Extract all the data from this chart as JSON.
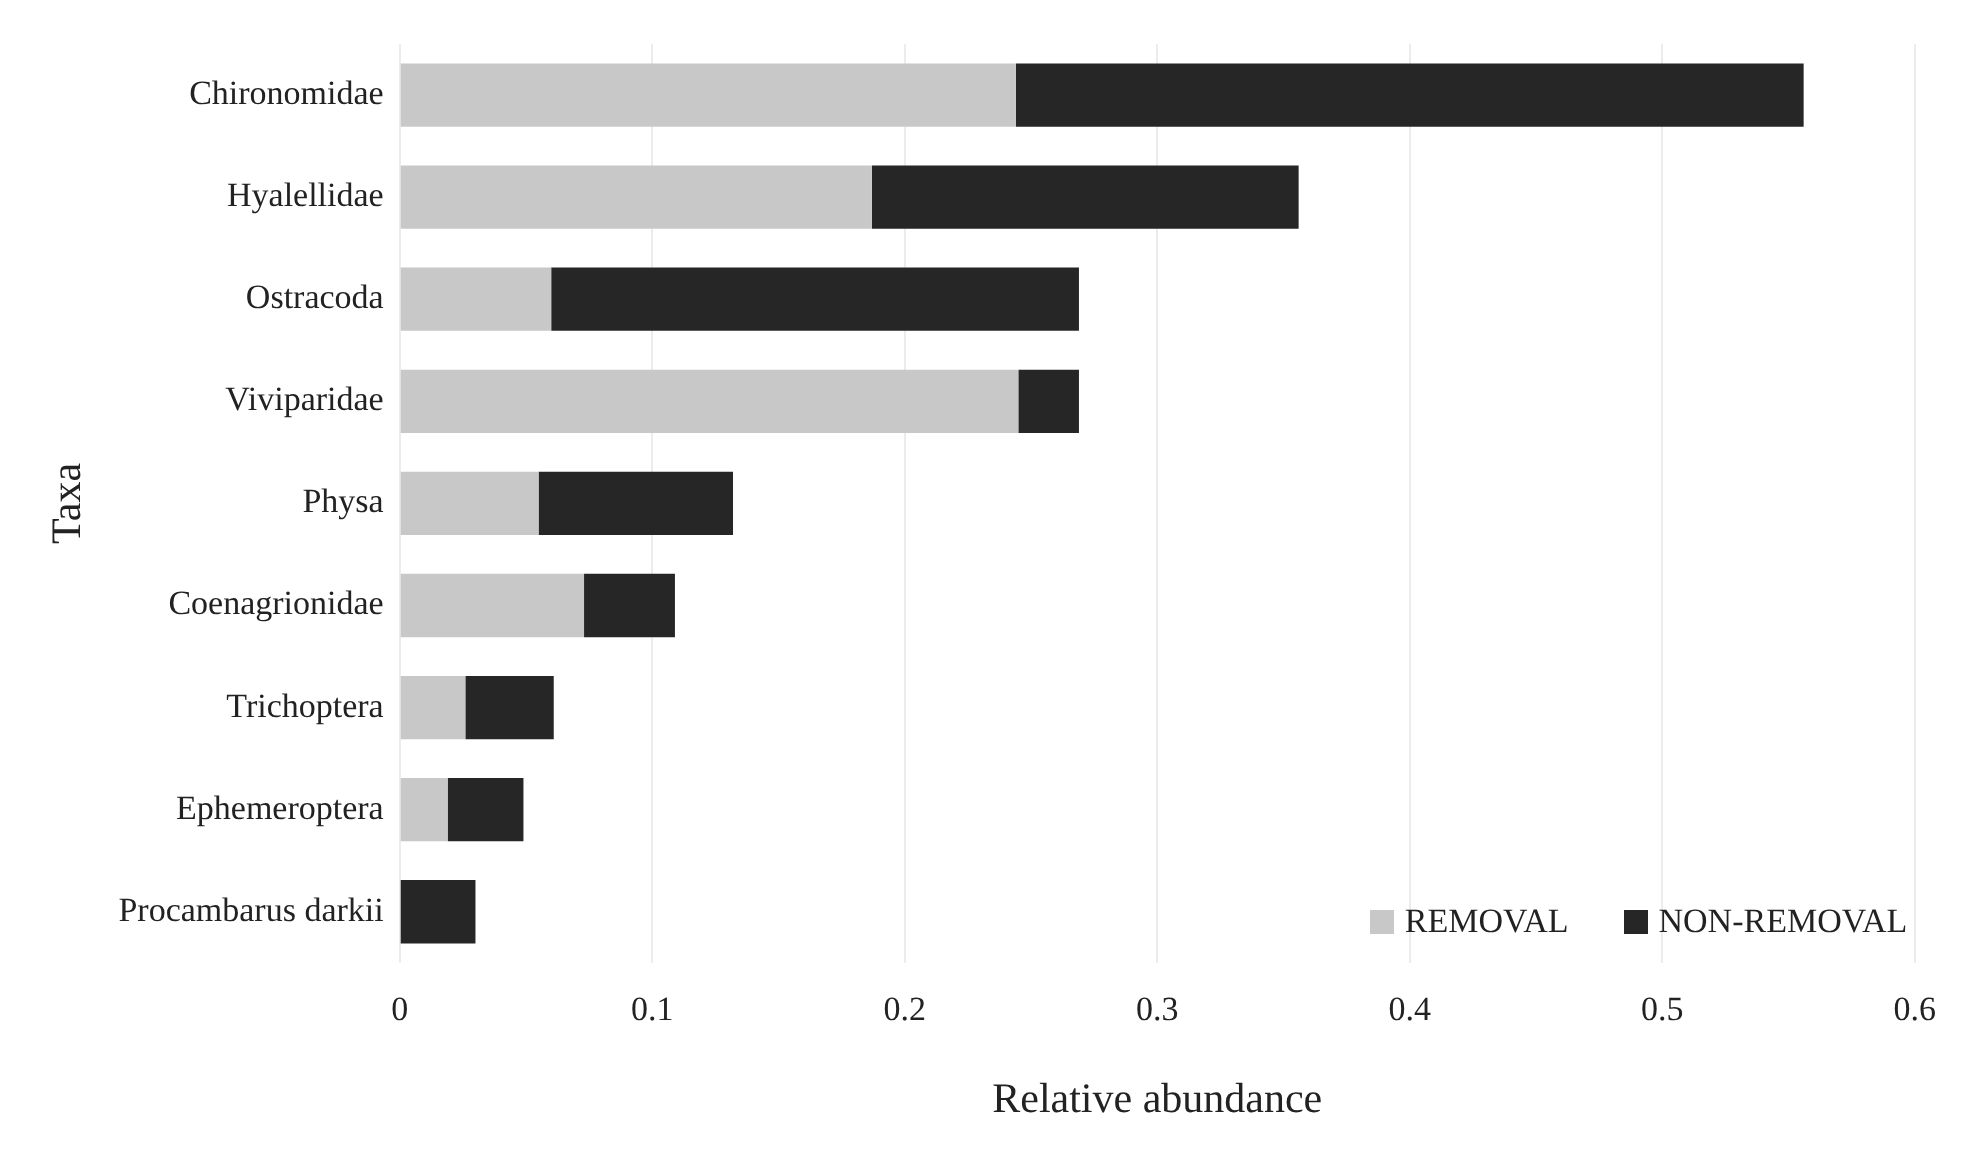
{
  "chart_data": {
    "type": "bar",
    "orientation": "horizontal",
    "stacked": true,
    "xlabel": "Relative abundance",
    "ylabel": "Taxa",
    "categories": [
      "Chironomidae",
      "Hyalellidae",
      "Ostracoda",
      "Viviparidae",
      "Physa",
      "Coenagrionidae",
      "Trichoptera",
      "Ephemeroptera",
      "Procambarus darkii"
    ],
    "series": [
      {
        "name": "REMOVAL",
        "color": "#c8c8c8",
        "values": [
          0.244,
          0.187,
          0.06,
          0.245,
          0.055,
          0.073,
          0.026,
          0.019,
          0
        ]
      },
      {
        "name": "NON-REMOVAL",
        "color": "#262626",
        "values": [
          0.312,
          0.169,
          0.209,
          0.024,
          0.077,
          0.036,
          0.035,
          0.03,
          0.03
        ]
      }
    ],
    "xlim": [
      0,
      0.6
    ],
    "xticks": [
      0,
      0.1,
      0.2,
      0.3,
      0.4,
      0.5,
      0.6
    ],
    "grid": "x",
    "legend": "bottom right"
  }
}
